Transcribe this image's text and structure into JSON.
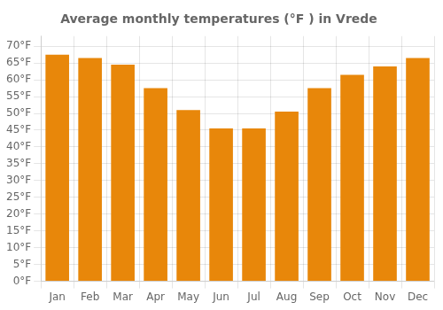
{
  "chart_data": {
    "type": "bar",
    "title": "Average monthly temperatures (°F ) in Vrede",
    "categories": [
      "Jan",
      "Feb",
      "Mar",
      "Apr",
      "May",
      "Jun",
      "Jul",
      "Aug",
      "Sep",
      "Oct",
      "Nov",
      "Dec"
    ],
    "values": [
      67.5,
      66.5,
      64.5,
      57.5,
      51.0,
      45.5,
      45.5,
      50.5,
      57.5,
      61.5,
      64.0,
      66.5
    ],
    "color": "#E8870A",
    "ylim": [
      0,
      73
    ],
    "yticks": [
      {
        "value": 0,
        "label": "0°F"
      },
      {
        "value": 5,
        "label": "5°F"
      },
      {
        "value": 10,
        "label": "10°F"
      },
      {
        "value": 15,
        "label": "15°F"
      },
      {
        "value": 20,
        "label": "20°F"
      },
      {
        "value": 25,
        "label": "25°F"
      },
      {
        "value": 30,
        "label": "30°F"
      },
      {
        "value": 35,
        "label": "35°F"
      },
      {
        "value": 40,
        "label": "40°F"
      },
      {
        "value": 45,
        "label": "45°F"
      },
      {
        "value": 50,
        "label": "50°F"
      },
      {
        "value": 55,
        "label": "55°F"
      },
      {
        "value": 60,
        "label": "60°F"
      },
      {
        "value": 65,
        "label": "65°F"
      },
      {
        "value": 70,
        "label": "70°F"
      }
    ],
    "grid": true
  }
}
